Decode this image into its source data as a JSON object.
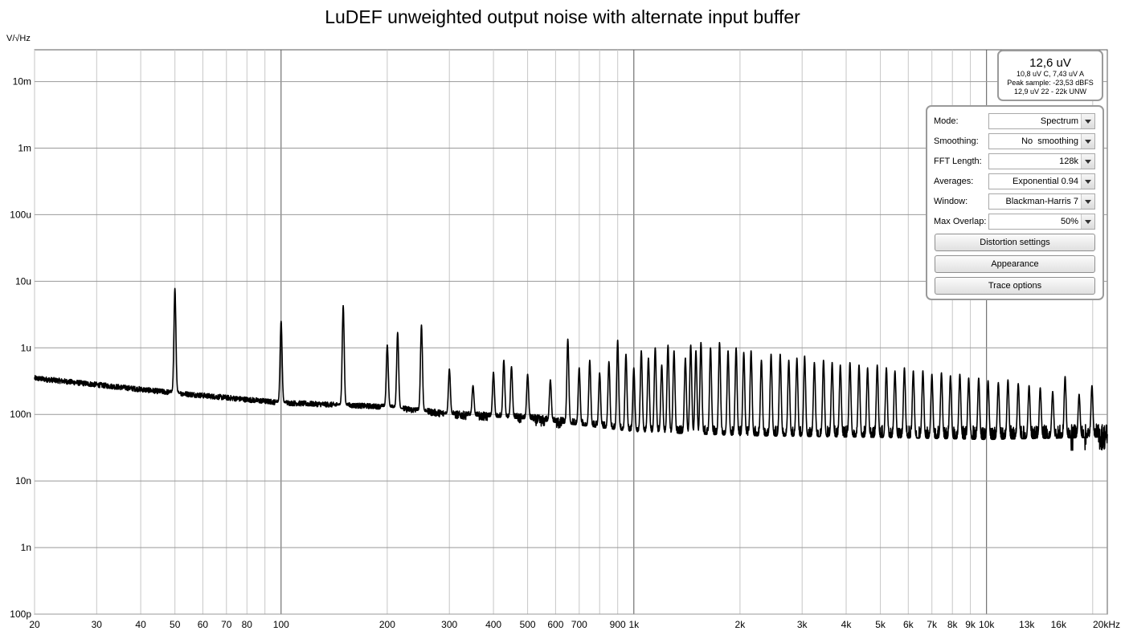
{
  "chart_data": {
    "type": "line",
    "title": "LuDEF unweighted output noise with alternate input buffer",
    "y_unit": "V/√Hz",
    "x_scale": "log",
    "y_scale": "log",
    "xlim": [
      20,
      22000
    ],
    "ylim": [
      1e-10,
      0.03
    ],
    "grid": true,
    "x_ticks": [
      {
        "v": 20,
        "label": "20"
      },
      {
        "v": 30,
        "label": "30"
      },
      {
        "v": 40,
        "label": "40"
      },
      {
        "v": 50,
        "label": "50"
      },
      {
        "v": 60,
        "label": "60"
      },
      {
        "v": 70,
        "label": "70"
      },
      {
        "v": 80,
        "label": "80"
      },
      {
        "v": 100,
        "label": "100"
      },
      {
        "v": 200,
        "label": "200"
      },
      {
        "v": 300,
        "label": "300"
      },
      {
        "v": 400,
        "label": "400"
      },
      {
        "v": 500,
        "label": "500"
      },
      {
        "v": 600,
        "label": "600"
      },
      {
        "v": 700,
        "label": "700"
      },
      {
        "v": 900,
        "label": "900"
      },
      {
        "v": 1000,
        "label": "1k"
      },
      {
        "v": 2000,
        "label": "2k"
      },
      {
        "v": 3000,
        "label": "3k"
      },
      {
        "v": 4000,
        "label": "4k"
      },
      {
        "v": 5000,
        "label": "5k"
      },
      {
        "v": 6000,
        "label": "6k"
      },
      {
        "v": 7000,
        "label": "7k"
      },
      {
        "v": 8000,
        "label": "8k"
      },
      {
        "v": 9000,
        "label": "9k"
      },
      {
        "v": 10000,
        "label": "10k"
      },
      {
        "v": 13000,
        "label": "13k",
        "muted": true
      },
      {
        "v": 16000,
        "label": "16k",
        "muted": true
      },
      {
        "v": 20000,
        "label": "20kHz"
      }
    ],
    "y_ticks": [
      {
        "v": 0.01,
        "label": "10m"
      },
      {
        "v": 0.001,
        "label": "1m"
      },
      {
        "v": 0.0001,
        "label": "100u"
      },
      {
        "v": 1e-05,
        "label": "10u"
      },
      {
        "v": 1e-06,
        "label": "1u"
      },
      {
        "v": 1e-07,
        "label": "100n"
      },
      {
        "v": 1e-08,
        "label": "10n"
      },
      {
        "v": 1e-09,
        "label": "1n"
      },
      {
        "v": 1e-10,
        "label": "100p"
      }
    ],
    "series": [
      {
        "floor": [
          [
            20,
            3.5e-07
          ],
          [
            50,
            2.1e-07
          ],
          [
            100,
            1.5e-07
          ],
          [
            200,
            1.3e-07
          ],
          [
            300,
            1e-07
          ],
          [
            500,
            8.5e-08
          ],
          [
            1000,
            5.5e-08
          ],
          [
            2000,
            4.8e-08
          ],
          [
            5000,
            4.5e-08
          ],
          [
            10000,
            4.2e-08
          ],
          [
            20000,
            4.5e-08
          ],
          [
            22000,
            4.7e-08
          ]
        ],
        "peaks": [
          [
            50,
            7.8e-06
          ],
          [
            100,
            2.5e-06
          ],
          [
            150,
            4.3e-06
          ],
          [
            200,
            1.1e-06
          ],
          [
            214,
            1.7e-06
          ],
          [
            250,
            2.2e-06
          ],
          [
            300,
            4.8e-07
          ],
          [
            350,
            2.7e-07
          ],
          [
            400,
            4.3e-07
          ],
          [
            428,
            6.5e-07
          ],
          [
            450,
            5.2e-07
          ],
          [
            500,
            4e-07
          ],
          [
            580,
            3.3e-07
          ],
          [
            650,
            1.35e-06
          ],
          [
            700,
            5e-07
          ],
          [
            750,
            6.5e-07
          ],
          [
            800,
            4.2e-07
          ],
          [
            850,
            6.2e-07
          ],
          [
            900,
            1.3e-06
          ],
          [
            950,
            8e-07
          ],
          [
            1000,
            5e-07
          ],
          [
            1050,
            9e-07
          ],
          [
            1100,
            7e-07
          ],
          [
            1150,
            1e-06
          ],
          [
            1200,
            5.5e-07
          ],
          [
            1250,
            1.1e-06
          ],
          [
            1300,
            9e-07
          ],
          [
            1400,
            7e-07
          ],
          [
            1450,
            1.1e-06
          ],
          [
            1500,
            9e-07
          ],
          [
            1550,
            1.2e-06
          ],
          [
            1650,
            1e-06
          ],
          [
            1750,
            1.2e-06
          ],
          [
            1850,
            9e-07
          ],
          [
            1950,
            1e-06
          ],
          [
            2050,
            8.5e-07
          ],
          [
            2150,
            9e-07
          ],
          [
            2300,
            6.5e-07
          ],
          [
            2450,
            8e-07
          ],
          [
            2600,
            8e-07
          ],
          [
            2750,
            6.5e-07
          ],
          [
            2900,
            7e-07
          ],
          [
            3050,
            7.5e-07
          ],
          [
            3250,
            6e-07
          ],
          [
            3450,
            6.5e-07
          ],
          [
            3650,
            6e-07
          ],
          [
            3850,
            5.5e-07
          ],
          [
            4100,
            6e-07
          ],
          [
            4350,
            5.5e-07
          ],
          [
            4600,
            5e-07
          ],
          [
            4900,
            5.5e-07
          ],
          [
            5200,
            5e-07
          ],
          [
            5500,
            4.5e-07
          ],
          [
            5850,
            5e-07
          ],
          [
            6200,
            4.5e-07
          ],
          [
            6600,
            4.5e-07
          ],
          [
            7000,
            4e-07
          ],
          [
            7450,
            4.2e-07
          ],
          [
            7900,
            3.8e-07
          ],
          [
            8400,
            4e-07
          ],
          [
            8900,
            3.5e-07
          ],
          [
            9500,
            3.5e-07
          ],
          [
            10100,
            3.2e-07
          ],
          [
            10800,
            3e-07
          ],
          [
            11500,
            3.3e-07
          ],
          [
            12300,
            2.9e-07
          ],
          [
            13200,
            2.7e-07
          ],
          [
            14200,
            2.5e-07
          ],
          [
            15400,
            2.2e-07
          ],
          [
            16700,
            3.7e-07
          ],
          [
            18300,
            2e-07
          ],
          [
            19900,
            2.7e-07
          ]
        ]
      }
    ]
  },
  "measurement": {
    "main": "12,6 uV",
    "line1": "10,8 uV C, 7,43 uV A",
    "line2": "Peak sample: -23,53 dBFS",
    "line3": "12,9 uV 22 - 22k UNW"
  },
  "settings": {
    "mode_label": "Mode:",
    "mode_value": "Spectrum",
    "smoothing_label": "Smoothing:",
    "smoothing_value": "No  smoothing",
    "fft_label": "FFT Length:",
    "fft_value": "128k",
    "averages_label": "Averages:",
    "averages_value": "Exponential 0.94",
    "window_label": "Window:",
    "window_value": "Blackman-Harris 7",
    "overlap_label": "Max Overlap:",
    "overlap_value": "50%",
    "distortion_button": "Distortion settings",
    "appearance_button": "Appearance",
    "trace_button": "Trace options"
  }
}
